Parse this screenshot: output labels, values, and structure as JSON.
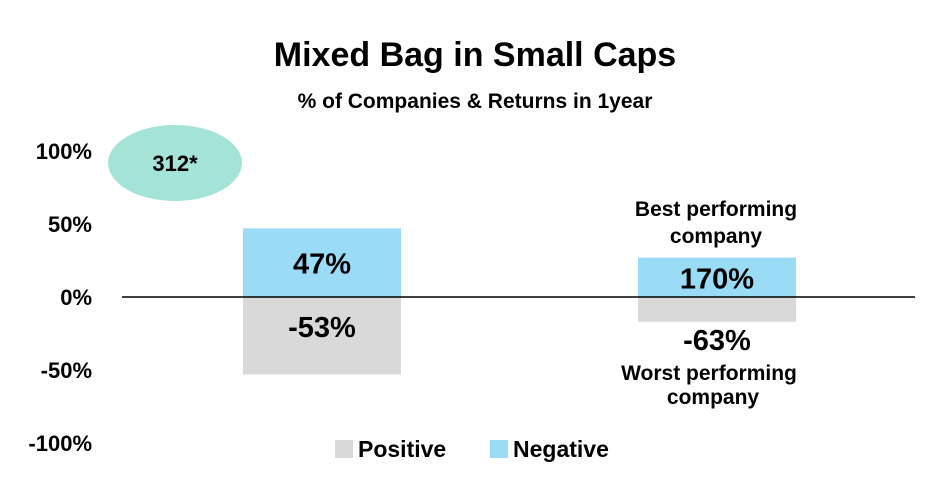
{
  "chart_data": {
    "type": "bar",
    "title": "Mixed Bag in Small Caps",
    "subtitle": "% of Companies & Returns in 1year",
    "yticks": [
      "100%",
      "50%",
      "0%",
      "-50%",
      "-100%"
    ],
    "ylim": [
      -100,
      100
    ],
    "grid": false,
    "legend_position": "bottom",
    "badge": "312*",
    "bars": [
      {
        "group": 0,
        "series": "Negative",
        "value": 47,
        "label": "47%"
      },
      {
        "group": 0,
        "series": "Positive",
        "value": -53,
        "label": "-53%"
      },
      {
        "group": 1,
        "series": "Negative",
        "value": 27,
        "label": "170%"
      },
      {
        "group": 1,
        "series": "Positive",
        "value": -17,
        "label": "-63%"
      }
    ],
    "annotations": {
      "best_line1": "Best performing",
      "best_line2": "company",
      "worst_line1": "Worst performing",
      "worst_line2": "company"
    },
    "series": [
      {
        "name": "Positive",
        "color": "#d9d9d9"
      },
      {
        "name": "Negative",
        "color": "#9adcf5"
      }
    ],
    "badge_color": "#a4e4d8"
  }
}
